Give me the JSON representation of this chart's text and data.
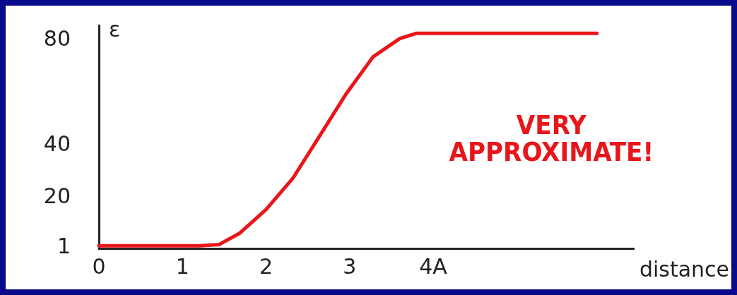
{
  "chart_data": {
    "type": "line",
    "xlabel": "distance",
    "ylabel": "ε",
    "annotations": [
      "VERY\nAPPROXIMATE!"
    ],
    "x": [
      0,
      1.2,
      1.44,
      1.68,
      2.0,
      2.32,
      2.64,
      2.96,
      3.28,
      3.6,
      3.8,
      5.96
    ],
    "series": [
      {
        "color": "#e8161b",
        "values": [
          1,
          1,
          1.5,
          5.7,
          14.8,
          26.7,
          42.8,
          59,
          73,
          80,
          82,
          82
        ]
      }
    ],
    "xlim": [
      0,
      6.4
    ],
    "xticks": [
      0,
      1,
      2,
      3,
      {
        "value": 4,
        "label": "4A"
      }
    ],
    "ylim": [
      0,
      85
    ],
    "yticks": [
      1,
      20,
      40,
      80
    ],
    "grid": false,
    "marker": "none",
    "line_style": "solid"
  }
}
